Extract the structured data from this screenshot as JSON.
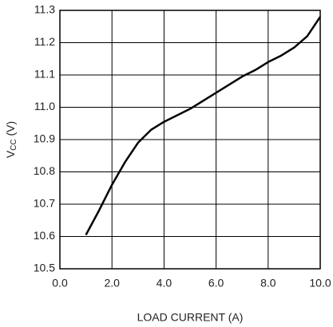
{
  "chart_data": {
    "type": "line",
    "xlabel": "LOAD CURRENT (A)",
    "ylabel": [
      "V",
      "CC",
      " (V)"
    ],
    "x": [
      1.0,
      1.5,
      2.0,
      2.5,
      3.0,
      3.5,
      4.0,
      4.5,
      5.0,
      5.5,
      6.0,
      6.5,
      7.0,
      7.5,
      8.0,
      8.5,
      9.0,
      9.5,
      10.0
    ],
    "series": [
      {
        "color": "#000000",
        "values": [
          10.605,
          10.68,
          10.76,
          10.83,
          10.89,
          10.93,
          10.955,
          10.975,
          10.995,
          11.02,
          11.045,
          11.07,
          11.095,
          11.115,
          11.14,
          11.16,
          11.185,
          11.22,
          11.28
        ]
      }
    ],
    "xlim": [
      0,
      10
    ],
    "xticks": [
      {
        "value": 0,
        "label": "0.0"
      },
      {
        "value": 2,
        "label": "2.0"
      },
      {
        "value": 4,
        "label": "4.0"
      },
      {
        "value": 6,
        "label": "6.0"
      },
      {
        "value": 8,
        "label": "8.0"
      },
      {
        "value": 10,
        "label": "10.0"
      }
    ],
    "ylim": [
      10.5,
      11.3
    ],
    "yticks": [
      10.5,
      10.6,
      10.7,
      10.8,
      10.9,
      {
        "value": 11,
        "label": "11.0"
      },
      11.1,
      11.2,
      11.3
    ],
    "grid": true
  }
}
